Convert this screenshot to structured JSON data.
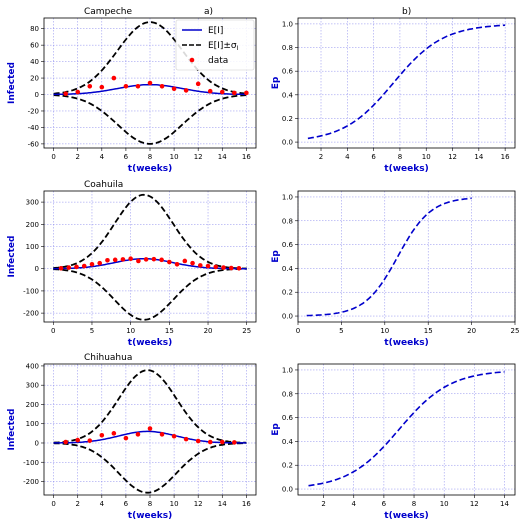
{
  "panel_labels": {
    "a": "a)",
    "b": "b)"
  },
  "legend": {
    "mean": "E[I]",
    "band": "E[I]±σ",
    "band_sub": "I",
    "data": "data"
  },
  "colors": {
    "mean": "#0000cc",
    "band": "#000000",
    "data": "#ff0000",
    "grid": "#8888ee",
    "label": "#0000cc"
  },
  "chart_data": [
    {
      "type": "line",
      "panel": "infected",
      "title": "Campeche",
      "xlabel": "t(weeks)",
      "ylabel": "Infected",
      "xlim": [
        -0.8,
        16.8
      ],
      "ylim": [
        -65,
        93
      ],
      "xticks": [
        0,
        2,
        4,
        6,
        8,
        10,
        12,
        14,
        16
      ],
      "yticks": [
        -60,
        -40,
        -20,
        0,
        20,
        40,
        60,
        80
      ],
      "grid": true,
      "legend_position": "top-right",
      "model": {
        "peak_t": 8,
        "sigma_t": 2.7,
        "mean_peak": 12,
        "band_peak": 88,
        "band_low": -60,
        "t_range": [
          0,
          16
        ]
      },
      "data_points": {
        "x": [
          1,
          2,
          3,
          4,
          5,
          6,
          7,
          8,
          9,
          10,
          11,
          12,
          13,
          14,
          15,
          16
        ],
        "y": [
          1,
          3,
          10,
          9,
          20,
          10,
          10,
          14,
          10,
          7,
          5,
          13,
          4,
          3,
          2,
          2
        ]
      }
    },
    {
      "type": "line",
      "panel": "ep",
      "title": "",
      "xlabel": "t(weeks)",
      "ylabel": "Ep",
      "xlim": [
        0.25,
        16.75
      ],
      "ylim": [
        -0.05,
        1.05
      ],
      "xticks": [
        2,
        4,
        6,
        8,
        10,
        12,
        14,
        16
      ],
      "yticks": [
        0.0,
        0.2,
        0.4,
        0.6,
        0.8,
        1.0
      ],
      "grid": true,
      "curve": {
        "t_range": [
          1,
          16
        ],
        "mid": 7.5,
        "scale": 1.9
      }
    },
    {
      "type": "line",
      "panel": "infected",
      "title": "Coahuila",
      "xlabel": "t(weeks)",
      "ylabel": "Infected",
      "xlim": [
        -1.2,
        26.2
      ],
      "ylim": [
        -240,
        350
      ],
      "xticks": [
        0,
        5,
        10,
        15,
        20,
        25
      ],
      "yticks": [
        -200,
        -100,
        0,
        100,
        200,
        300
      ],
      "grid": true,
      "model": {
        "peak_t": 11.7,
        "sigma_t": 3.8,
        "mean_peak": 45,
        "band_peak": 333,
        "band_low": -230,
        "t_range": [
          0,
          25
        ]
      },
      "data_points": {
        "x": [
          1,
          2,
          3,
          4,
          5,
          6,
          7,
          8,
          9,
          10,
          11,
          12,
          13,
          14,
          15,
          16,
          17,
          18,
          19,
          20,
          21,
          22,
          23,
          24
        ],
        "y": [
          2,
          5,
          8,
          12,
          20,
          25,
          38,
          40,
          42,
          45,
          35,
          42,
          43,
          40,
          30,
          20,
          35,
          25,
          15,
          12,
          8,
          5,
          3,
          2
        ]
      }
    },
    {
      "type": "line",
      "panel": "ep",
      "title": "",
      "xlabel": "t(weeks)",
      "ylabel": "Ep",
      "xlim": [
        0,
        25
      ],
      "ylim": [
        -0.05,
        1.05
      ],
      "xticks": [
        0,
        5,
        10,
        15,
        20,
        25
      ],
      "yticks": [
        0.0,
        0.2,
        0.4,
        0.6,
        0.8,
        1.0
      ],
      "grid": true,
      "curve": {
        "t_range": [
          1,
          20
        ],
        "mid": 11.5,
        "scale": 1.9
      }
    },
    {
      "type": "line",
      "panel": "infected",
      "title": "Chihuahua",
      "xlabel": "t(weeks)",
      "ylabel": "Infected",
      "xlim": [
        -0.8,
        16.8
      ],
      "ylim": [
        -270,
        410
      ],
      "xticks": [
        0,
        2,
        4,
        6,
        8,
        10,
        12,
        14,
        16
      ],
      "yticks": [
        -200,
        -100,
        0,
        100,
        200,
        300,
        400
      ],
      "grid": true,
      "model": {
        "peak_t": 7.8,
        "sigma_t": 2.4,
        "mean_peak": 60,
        "band_peak": 378,
        "band_low": -258,
        "t_range": [
          0,
          16
        ]
      },
      "data_points": {
        "x": [
          1,
          2,
          3,
          4,
          5,
          6,
          7,
          8,
          9,
          10,
          11,
          12,
          13,
          14,
          15
        ],
        "y": [
          5,
          15,
          12,
          40,
          50,
          25,
          45,
          75,
          45,
          35,
          20,
          10,
          5,
          5,
          3
        ]
      }
    },
    {
      "type": "line",
      "panel": "ep",
      "title": "",
      "xlabel": "t(weeks)",
      "ylabel": "Ep",
      "xlim": [
        0.3,
        14.7
      ],
      "ylim": [
        -0.05,
        1.05
      ],
      "xticks": [
        2,
        4,
        6,
        8,
        10,
        12,
        14
      ],
      "yticks": [
        0.0,
        0.2,
        0.4,
        0.6,
        0.8,
        1.0
      ],
      "grid": true,
      "curve": {
        "t_range": [
          1,
          14
        ],
        "mid": 7.0,
        "scale": 1.7
      }
    }
  ]
}
